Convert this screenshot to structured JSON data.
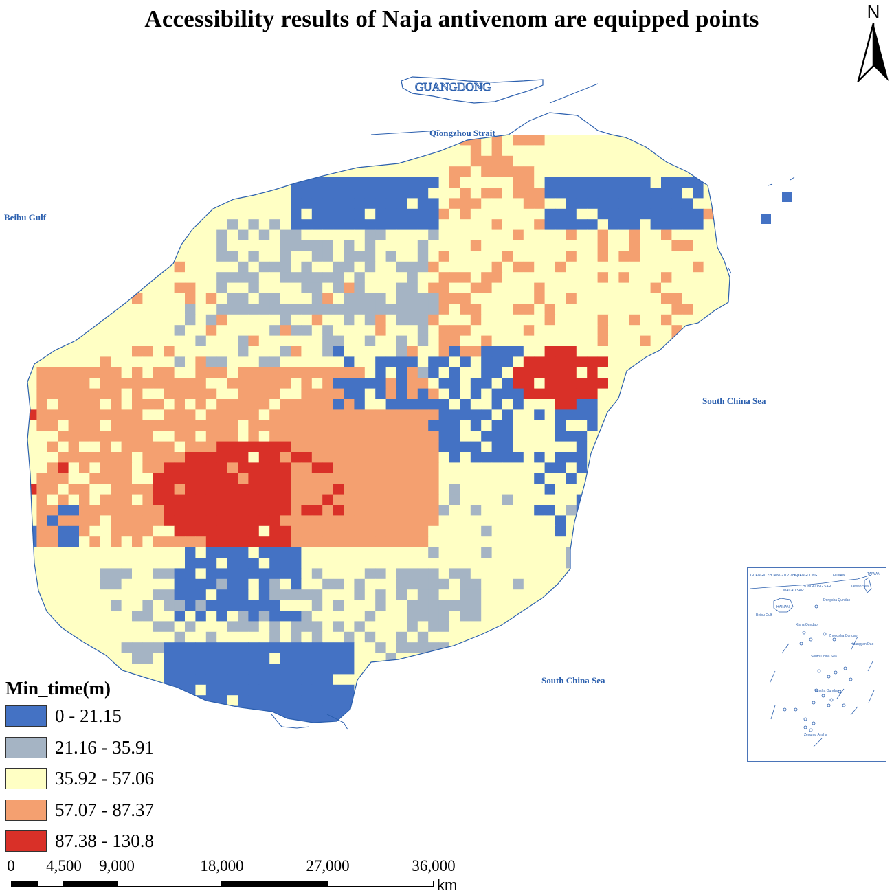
{
  "title": "Accessibility results of Naja antivenom are equipped points",
  "north_arrow": {
    "letter": "N"
  },
  "places": {
    "guangdong": "GUANGDONG",
    "strait": "Qiongzhou Strait",
    "gulf": "Beibu Gulf",
    "sea_east": "South China Sea",
    "sea_south": "South China Sea"
  },
  "legend": {
    "title": "Min_time(m)",
    "classes": [
      {
        "label": "0 - 21.15",
        "color": "#4472c4"
      },
      {
        "label": "21.16 - 35.91",
        "color": "#a5b4c4"
      },
      {
        "label": "35.92 - 57.06",
        "color": "#ffffc4"
      },
      {
        "label": "57.07 - 87.37",
        "color": "#f4a070"
      },
      {
        "label": "87.38 - 130.8",
        "color": "#d93028"
      }
    ]
  },
  "scale_bar": {
    "ticks": [
      "0",
      "4,500",
      "9,000",
      "18,000",
      "27,000",
      "36,000"
    ],
    "unit": "km"
  },
  "inset": {
    "labels": [
      "GUANGXI ZHUANGZU ZIZHIQU",
      "GUANGDONG",
      "FUJIAN",
      "TAIWAN",
      "HONGKONG SAR",
      "MACAU SAR",
      "Taiwan Sea",
      "Dongsha Qundao",
      "HAINAN",
      "Beibu Gulf",
      "Xisha Qundao",
      "Zhongsha Qundao",
      "Huangyan Dao",
      "South China Sea",
      "Nansha Qundao",
      "Zengmu Ansha"
    ]
  },
  "colors": {
    "water_line": "#2b5fae",
    "background": "#ffffff"
  }
}
